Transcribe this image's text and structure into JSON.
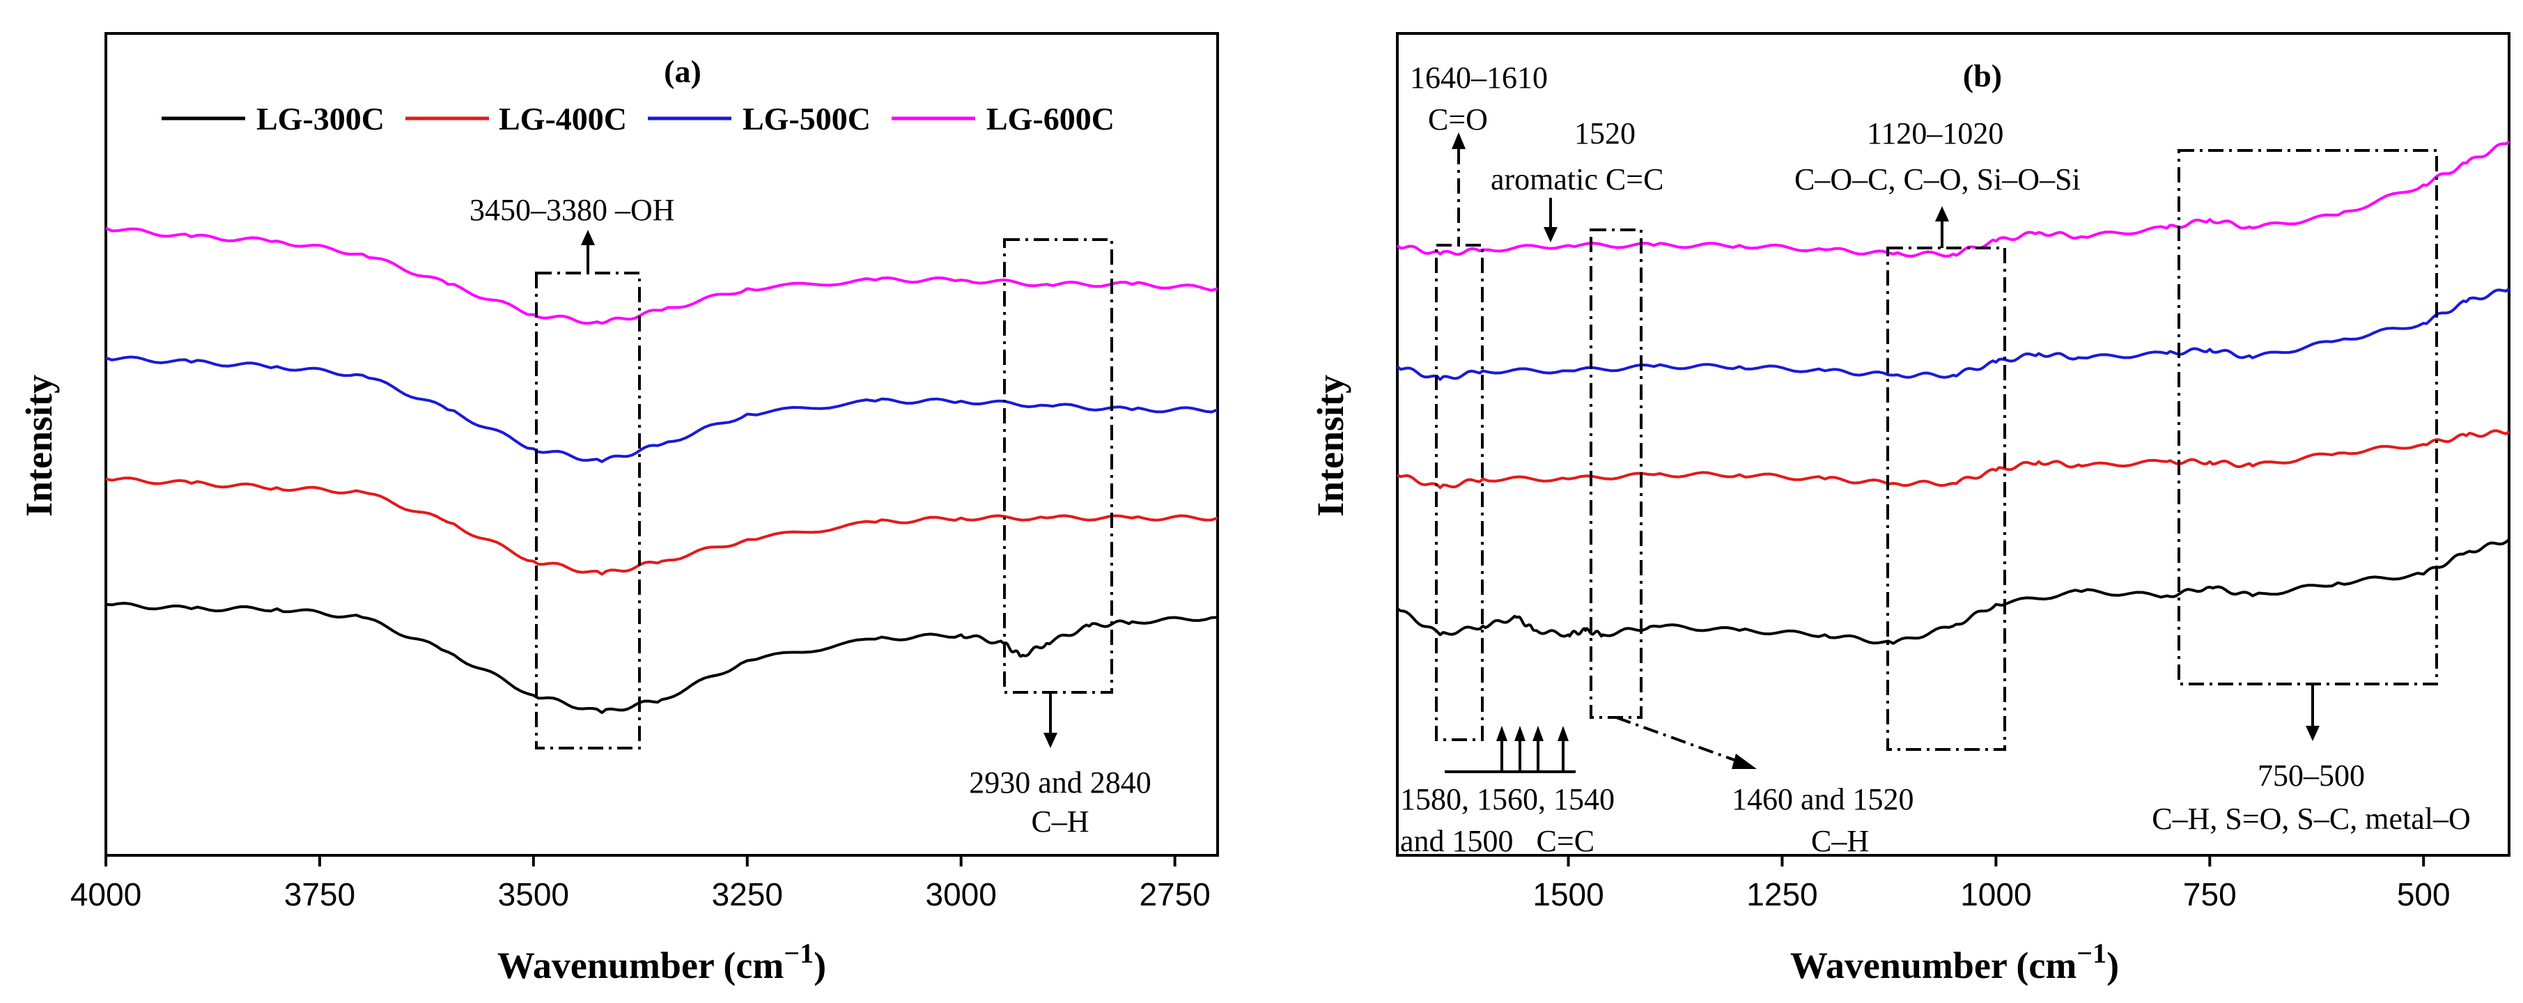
{
  "chart_data": [
    {
      "panel_label": "(a)",
      "type": "line",
      "xlabel": "Wavenumber (cm",
      "xlabel_sup": "−1",
      "xlabel_close": ")",
      "ylabel": "Intensity",
      "xlim": [
        4000,
        2700
      ],
      "x_reversed": true,
      "yticks_shown": false,
      "xticks": [
        4000,
        3750,
        3500,
        3250,
        3000,
        2750
      ],
      "legend": [
        "LG-300C",
        "LG-400C",
        "LG-500C",
        "LG-600C"
      ],
      "series": [
        {
          "name": "LG-300C",
          "color": "#000000",
          "x": [
            4000,
            3900,
            3800,
            3700,
            3600,
            3500,
            3420,
            3350,
            3250,
            3100,
            3000,
            2950,
            2930,
            2900,
            2850,
            2800,
            2700
          ],
          "y": [
            0.43,
            0.42,
            0.42,
            0.4,
            0.32,
            0.22,
            0.18,
            0.21,
            0.3,
            0.35,
            0.36,
            0.34,
            0.31,
            0.34,
            0.38,
            0.39,
            0.4
          ]
        },
        {
          "name": "LG-400C",
          "color": "#e41a1c",
          "x": [
            4000,
            3900,
            3800,
            3700,
            3600,
            3500,
            3420,
            3350,
            3250,
            3100,
            3000,
            2900,
            2800,
            2700
          ],
          "y": [
            0.72,
            0.71,
            0.7,
            0.69,
            0.62,
            0.53,
            0.5,
            0.53,
            0.58,
            0.62,
            0.63,
            0.63,
            0.63,
            0.63
          ]
        },
        {
          "name": "LG-500C",
          "color": "#1a1ad9",
          "x": [
            4000,
            3900,
            3800,
            3700,
            3600,
            3500,
            3420,
            3350,
            3250,
            3100,
            3000,
            2900,
            2800,
            2700
          ],
          "y": [
            1.0,
            0.99,
            0.98,
            0.96,
            0.88,
            0.79,
            0.76,
            0.8,
            0.87,
            0.9,
            0.9,
            0.89,
            0.88,
            0.88
          ]
        },
        {
          "name": "LG-600C",
          "color": "#ff00ff",
          "x": [
            4000,
            3900,
            3800,
            3700,
            3600,
            3500,
            3420,
            3350,
            3250,
            3100,
            3000,
            2900,
            2800,
            2700
          ],
          "y": [
            1.3,
            1.28,
            1.27,
            1.24,
            1.17,
            1.1,
            1.08,
            1.11,
            1.16,
            1.18,
            1.18,
            1.17,
            1.17,
            1.16
          ]
        }
      ],
      "annotations": [
        {
          "text": "3450–3380  –OH",
          "range": [
            3450,
            3380
          ]
        },
        {
          "text_1": "2930 and 2840",
          "text_2": "C–H",
          "range": [
            2930,
            2840
          ]
        }
      ]
    },
    {
      "panel_label": "(b)",
      "type": "line",
      "xlabel": "Wavenumber (cm",
      "xlabel_sup": "−1",
      "xlabel_close": ")",
      "ylabel": "Intensity",
      "xlim": [
        1700,
        400
      ],
      "x_reversed": true,
      "yticks_shown": false,
      "xticks": [
        1500,
        1250,
        1000,
        750,
        500
      ],
      "series": [
        {
          "name": "LG-300C",
          "color": "#000000",
          "x": [
            1700,
            1650,
            1600,
            1560,
            1540,
            1500,
            1480,
            1460,
            1400,
            1300,
            1200,
            1120,
            1050,
            1000,
            900,
            800,
            750,
            700,
            600,
            500,
            450,
            400
          ],
          "y": [
            0.42,
            0.36,
            0.38,
            0.4,
            0.37,
            0.36,
            0.37,
            0.36,
            0.38,
            0.37,
            0.36,
            0.34,
            0.38,
            0.43,
            0.46,
            0.45,
            0.47,
            0.45,
            0.48,
            0.5,
            0.55,
            0.58
          ]
        },
        {
          "name": "LG-400C",
          "color": "#e41a1c",
          "x": [
            1700,
            1650,
            1600,
            1500,
            1400,
            1300,
            1200,
            1120,
            1050,
            1000,
            950,
            900,
            800,
            750,
            700,
            600,
            500,
            450,
            400
          ],
          "y": [
            0.73,
            0.7,
            0.72,
            0.72,
            0.73,
            0.73,
            0.72,
            0.71,
            0.71,
            0.74,
            0.76,
            0.75,
            0.76,
            0.76,
            0.75,
            0.78,
            0.8,
            0.82,
            0.83
          ]
        },
        {
          "name": "LG-500C",
          "color": "#1a1ad9",
          "x": [
            1700,
            1650,
            1600,
            1500,
            1400,
            1300,
            1200,
            1120,
            1050,
            1000,
            950,
            900,
            800,
            750,
            700,
            600,
            500,
            450,
            400
          ],
          "y": [
            0.98,
            0.95,
            0.97,
            0.97,
            0.98,
            0.98,
            0.97,
            0.96,
            0.96,
            0.99,
            1.01,
            1.0,
            1.01,
            1.02,
            1.0,
            1.04,
            1.08,
            1.13,
            1.16
          ]
        },
        {
          "name": "LG-600C",
          "color": "#ff00ff",
          "x": [
            1700,
            1650,
            1600,
            1500,
            1400,
            1300,
            1200,
            1120,
            1050,
            1000,
            950,
            900,
            800,
            750,
            700,
            600,
            500,
            450,
            400
          ],
          "y": [
            1.26,
            1.24,
            1.25,
            1.26,
            1.26,
            1.26,
            1.25,
            1.24,
            1.24,
            1.27,
            1.29,
            1.28,
            1.3,
            1.32,
            1.3,
            1.33,
            1.4,
            1.45,
            1.5
          ]
        }
      ],
      "annotations": [
        {
          "text_1": "1640–1610",
          "text_2": "C=O"
        },
        {
          "text_1": "1520",
          "text_2": "aromatic C=C"
        },
        {
          "text_1": "1120–1020",
          "text_2": "C–O–C, C–O, Si–O–Si"
        },
        {
          "text_1": "1580, 1560, 1540",
          "text_2": "and 1500   C=C"
        },
        {
          "text_1": "1460 and 1520",
          "text_2": "C–H"
        },
        {
          "text_1": "750–500",
          "text_2": "C–H, S=O, S–C, metal–O"
        }
      ]
    }
  ]
}
